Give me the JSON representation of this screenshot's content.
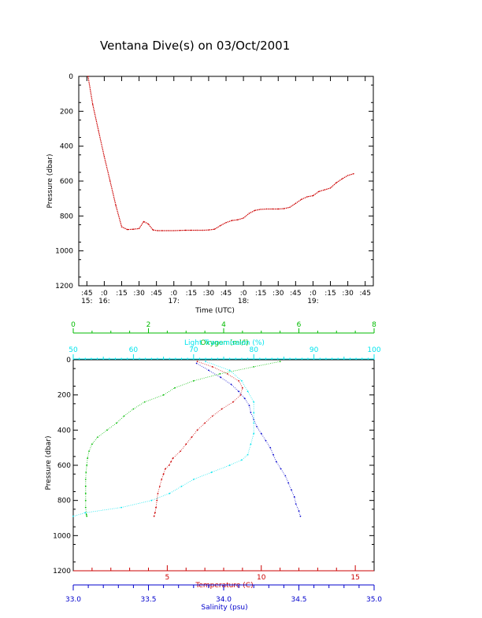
{
  "title": "Ventana Dive(s) on 03/Oct/2001",
  "colors": {
    "pressure_trace": "#cc0000",
    "temperature": "#cc0000",
    "salinity": "#0000cc",
    "oxygen": "#00bb00",
    "light": "#00e5ee",
    "axis": "#000000"
  },
  "chart_data": [
    {
      "type": "line",
      "xlabel": "Time (UTC)",
      "ylabel": "Pressure (dbar)",
      "ylim": [
        1200,
        0
      ],
      "y_ticks": [
        0,
        200,
        400,
        600,
        800,
        1000,
        1200
      ],
      "x_ticks": [
        ":45",
        ":0",
        ":15",
        ":30",
        ":45",
        ":0",
        ":15",
        ":30",
        ":45",
        ":0",
        ":15",
        ":30",
        ":45",
        ":0",
        ":15",
        ":30",
        ":45"
      ],
      "hour_labels": [
        "15:",
        "16:",
        "17:",
        "18:",
        "19:"
      ],
      "xlim_minutes_utc": [
        "15:38",
        "19:52"
      ],
      "series": [
        {
          "time": [
            "15:46",
            "15:50",
            "15:55",
            "16:00",
            "16:05",
            "16:10",
            "16:15",
            "16:20",
            "16:25",
            "16:30",
            "16:34",
            "16:38",
            "16:42",
            "16:46",
            "16:50",
            "16:55",
            "17:00",
            "17:05",
            "17:10",
            "17:15",
            "17:20",
            "17:25",
            "17:30",
            "17:35",
            "17:40",
            "17:45",
            "17:50",
            "17:55",
            "18:00",
            "18:05",
            "18:10",
            "18:15",
            "18:20",
            "18:25",
            "18:30",
            "18:35",
            "18:40",
            "18:45",
            "18:50",
            "18:55",
            "19:00",
            "19:05",
            "19:10",
            "19:15",
            "19:20",
            "19:25",
            "19:30",
            "19:35"
          ],
          "pressure": [
            0,
            160,
            310,
            460,
            600,
            740,
            862,
            878,
            876,
            872,
            832,
            846,
            880,
            884,
            884,
            884,
            884,
            883,
            882,
            882,
            882,
            882,
            880,
            876,
            856,
            838,
            826,
            822,
            812,
            785,
            768,
            762,
            760,
            760,
            760,
            758,
            750,
            728,
            705,
            690,
            684,
            660,
            650,
            640,
            610,
            588,
            568,
            558
          ]
        }
      ]
    },
    {
      "type": "scatter",
      "xlabel": "Temperature (C)",
      "ylabel": "Pressure (dbar)",
      "ylim": [
        1200,
        0
      ],
      "y_ticks": [
        0,
        200,
        400,
        600,
        800,
        1000,
        1200
      ],
      "axes": {
        "oxygen": {
          "label": "Oxygen (ml/l)",
          "range": [
            0,
            8
          ],
          "ticks": [
            0,
            2,
            4,
            6,
            8
          ]
        },
        "light": {
          "label": "Light Transmission (%)",
          "range": [
            50,
            100
          ],
          "ticks": [
            50,
            60,
            70,
            80,
            90,
            100
          ]
        },
        "temperature": {
          "label": "Temperature (C)",
          "range": [
            0,
            16
          ],
          "ticks": [
            5,
            10,
            15
          ]
        },
        "salinity": {
          "label": "Salinity (psu)",
          "range": [
            33.0,
            35.0
          ],
          "ticks": [
            "33.0",
            "33.5",
            "34.0",
            "34.5",
            "35.0"
          ]
        }
      },
      "series": [
        {
          "name": "Temperature (C)",
          "pressure": [
            10,
            40,
            80,
            120,
            160,
            200,
            240,
            280,
            320,
            360,
            400,
            440,
            480,
            520,
            560,
            580,
            600,
            620,
            650,
            680,
            720,
            760,
            800,
            840,
            870,
            890
          ],
          "values": [
            6.6,
            7.4,
            8.2,
            8.8,
            9.0,
            8.9,
            8.5,
            7.9,
            7.4,
            7.0,
            6.6,
            6.3,
            6.0,
            5.7,
            5.3,
            5.2,
            5.1,
            4.9,
            4.8,
            4.7,
            4.6,
            4.5,
            4.45,
            4.4,
            4.35,
            4.3
          ]
        },
        {
          "name": "Salinity (psu)",
          "pressure": [
            20,
            60,
            100,
            140,
            180,
            220,
            260,
            300,
            340,
            380,
            420,
            460,
            500,
            540,
            580,
            620,
            660,
            700,
            740,
            780,
            820,
            860,
            890
          ],
          "values": [
            33.82,
            33.9,
            33.98,
            34.05,
            34.1,
            34.14,
            34.17,
            34.18,
            34.2,
            34.22,
            34.25,
            34.28,
            34.31,
            34.33,
            34.35,
            34.38,
            34.41,
            34.43,
            34.45,
            34.47,
            34.48,
            34.5,
            34.51
          ]
        },
        {
          "name": "Oxygen (ml/l)",
          "pressure": [
            10,
            40,
            80,
            120,
            160,
            200,
            240,
            280,
            320,
            360,
            400,
            440,
            480,
            520,
            560,
            600,
            640,
            680,
            720,
            760,
            800,
            840,
            880,
            890
          ],
          "values": [
            5.5,
            4.8,
            3.9,
            3.2,
            2.7,
            2.4,
            1.9,
            1.6,
            1.35,
            1.15,
            0.9,
            0.65,
            0.5,
            0.42,
            0.38,
            0.36,
            0.34,
            0.33,
            0.33,
            0.33,
            0.33,
            0.33,
            0.35,
            0.36
          ]
        },
        {
          "name": "Light Transmission (%)",
          "pressure": [
            10,
            60,
            120,
            180,
            240,
            300,
            360,
            420,
            480,
            540,
            570,
            600,
            640,
            680,
            720,
            760,
            800,
            840,
            870,
            890
          ],
          "values": [
            72,
            76,
            78,
            79,
            80,
            80,
            80,
            80,
            79.5,
            79,
            78,
            76,
            73,
            70,
            68,
            66,
            63,
            58,
            52,
            50
          ]
        }
      ]
    }
  ]
}
